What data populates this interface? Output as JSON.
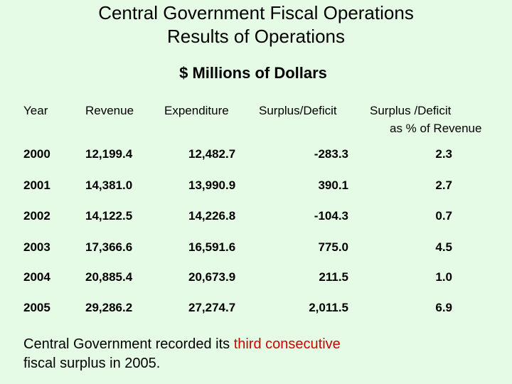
{
  "title": {
    "line1": "Central Government Fiscal Operations",
    "line2": "Results of Operations"
  },
  "subtitle": "$ Millions of Dollars",
  "table": {
    "headers": {
      "year": "Year",
      "revenue": "Revenue",
      "expenditure": "Expenditure",
      "surplus": "Surplus/Deficit",
      "pct_line1": "Surplus /Deficit",
      "pct_line2": "as % of Revenue"
    },
    "rows": [
      {
        "year": "2000",
        "revenue": "12,199.4",
        "expenditure": "12,482.7",
        "surplus": "-283.3",
        "pct": "2.3"
      },
      {
        "year": "2001",
        "revenue": "14,381.0",
        "expenditure": "13,990.9",
        "surplus": "390.1",
        "pct": "2.7"
      },
      {
        "year": "2002",
        "revenue": "14,122.5",
        "expenditure": "14,226.8",
        "surplus": "-104.3",
        "pct": "0.7"
      },
      {
        "year": "2003",
        "revenue": "17,366.6",
        "expenditure": "16,591.6",
        "surplus": "775.0",
        "pct": "4.5"
      },
      {
        "year": "2004",
        "revenue": "20,885.4",
        "expenditure": "20,673.9",
        "surplus": "211.5",
        "pct": "1.0"
      },
      {
        "year": "2005",
        "revenue": "29,286.2",
        "expenditure": "27,274.7",
        "surplus": "2,011.5",
        "pct": "6.9"
      }
    ]
  },
  "footer": {
    "part1": "Central Government recorded its ",
    "highlight": "third consecutive",
    "part2": "fiscal surplus in 2005."
  },
  "colors": {
    "background": "#e6fbe6",
    "highlight": "#cc0000"
  }
}
